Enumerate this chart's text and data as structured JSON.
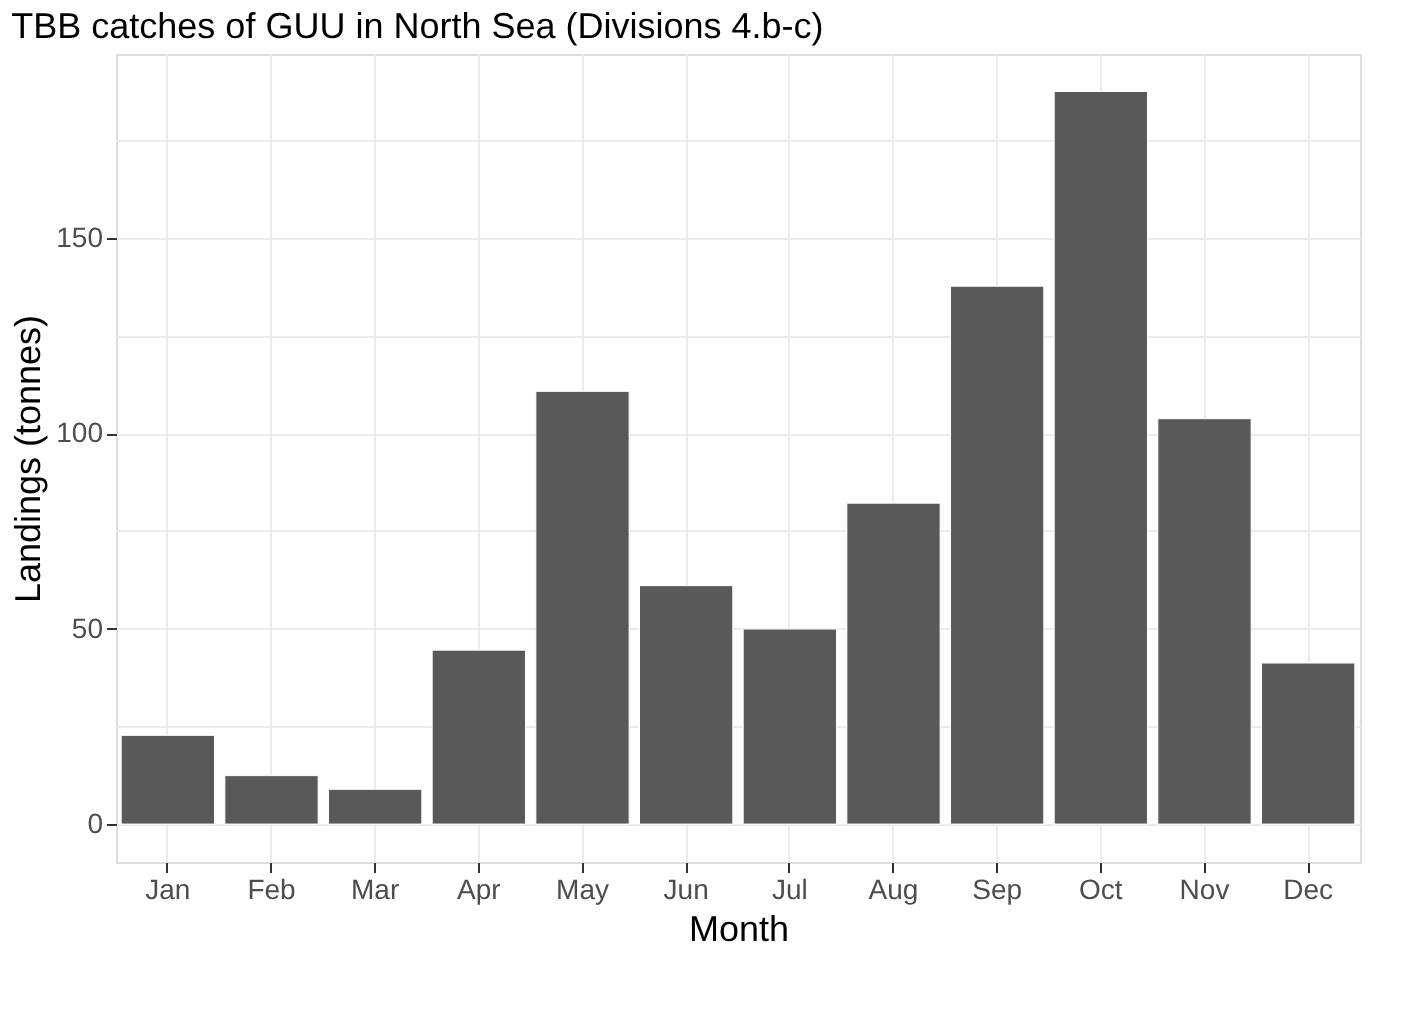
{
  "chart_data": {
    "type": "bar",
    "title": "TBB catches of GUU in North Sea (Divisions 4.b-c)",
    "xlabel": "Month",
    "ylabel": "Landings (tonnes)",
    "categories": [
      "Jan",
      "Feb",
      "Mar",
      "Apr",
      "May",
      "Jun",
      "Jul",
      "Aug",
      "Sep",
      "Oct",
      "Nov",
      "Dec"
    ],
    "values": [
      22.7,
      12.4,
      8.9,
      44.5,
      110.7,
      61,
      49.9,
      82.1,
      137.6,
      187.4,
      103.7,
      41.2
    ],
    "color": "#595959",
    "ylim": [
      -9.7,
      197
    ],
    "yticks": [
      0,
      {
        "value": 25,
        "label": null
      },
      50,
      {
        "value": 75,
        "label": null
      },
      100,
      {
        "value": 125,
        "label": null
      },
      150,
      {
        "value": 175,
        "label": null
      }
    ],
    "grid": true
  }
}
